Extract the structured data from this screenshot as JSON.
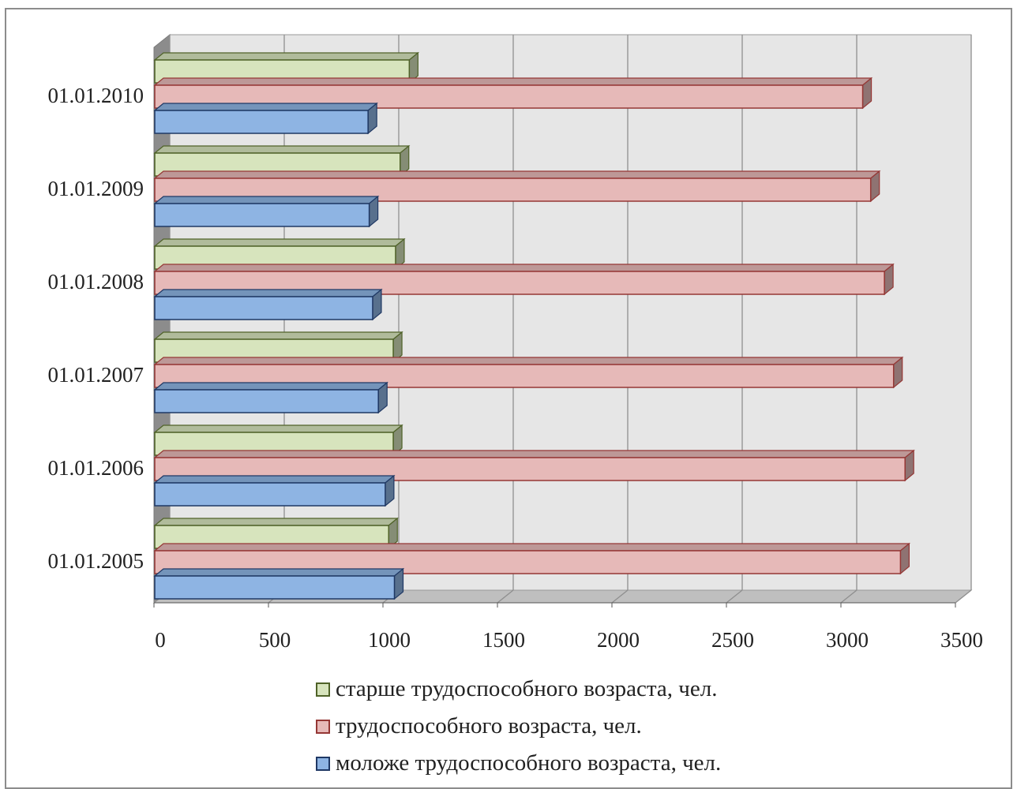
{
  "chart_data": {
    "type": "bar",
    "orientation": "horizontal",
    "three_d": true,
    "categories": [
      "01.01.2005",
      "01.01.2006",
      "01.01.2007",
      "01.01.2008",
      "01.01.2009",
      "01.01.2010"
    ],
    "series": [
      {
        "name": "моложе трудоспособного возраста, чел.",
        "color": "#8eb4e3",
        "edge": "#1f3864",
        "values": [
          1050,
          1010,
          980,
          955,
          940,
          935
        ]
      },
      {
        "name": "трудоспособного возраста, чел.",
        "color": "#e6b9b8",
        "edge": "#953735",
        "values": [
          3260,
          3280,
          3230,
          3190,
          3130,
          3095
        ]
      },
      {
        "name": "старше трудоспособного возраста, чел.",
        "color": "#d7e4bd",
        "edge": "#4f6228",
        "values": [
          1025,
          1045,
          1045,
          1055,
          1075,
          1115
        ]
      }
    ],
    "x_ticks": [
      "0",
      "500",
      "1000",
      "1500",
      "2000",
      "2500",
      "3000",
      "3500"
    ],
    "xlim": [
      0,
      3500
    ],
    "grid": true,
    "legend_position": "bottom",
    "legend_order": [
      2,
      1,
      0
    ]
  }
}
